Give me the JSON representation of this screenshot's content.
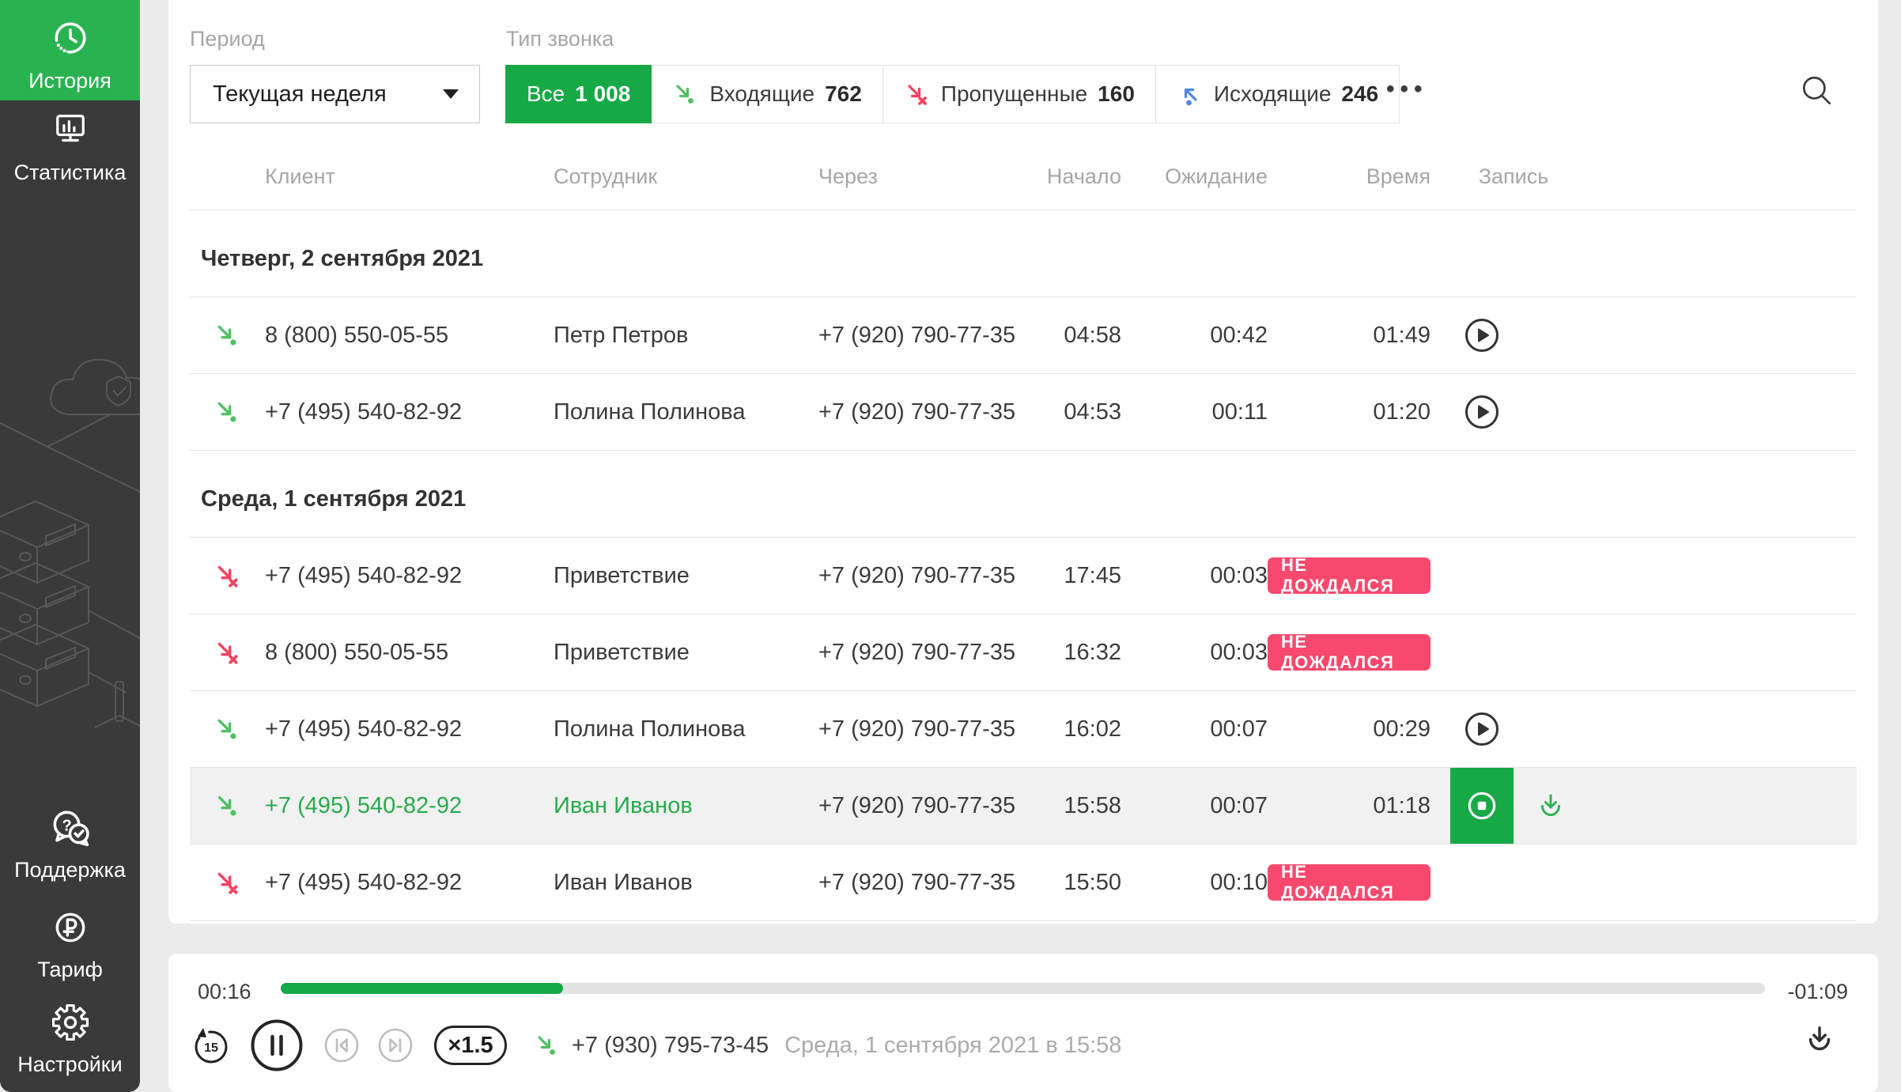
{
  "colors": {
    "accent_green": "#16a945",
    "sidebar_green": "#29b350",
    "icon_green": "#4fc161",
    "red": "#f8405f",
    "badge_red": "#f9486d",
    "blue": "#4f86ec",
    "sidebar_bg": "#3a3a3a",
    "page_bg": "#ebebeb",
    "row_highlight": "#f1f1f1",
    "text_dark": "#3f3f3f",
    "text_gray": "#a6a6a6"
  },
  "sidebar": {
    "items": [
      {
        "id": "history",
        "label": "История",
        "active": true
      },
      {
        "id": "statistics",
        "label": "Статистика",
        "active": false
      },
      {
        "id": "support",
        "label": "Поддержка",
        "active": false
      },
      {
        "id": "tariff",
        "label": "Тариф",
        "active": false
      },
      {
        "id": "settings",
        "label": "Настройки",
        "active": false
      }
    ]
  },
  "filters": {
    "period_label": "Период",
    "period_value": "Текущая неделя",
    "type_label": "Тип звонка",
    "types": [
      {
        "label": "Все",
        "count": "1 008",
        "active": true
      },
      {
        "label": "Входящие",
        "count": "762",
        "icon": "incoming"
      },
      {
        "label": "Пропущенные",
        "count": "160",
        "icon": "missed"
      },
      {
        "label": "Исходящие",
        "count": "246",
        "icon": "outgoing"
      }
    ],
    "more_label": "•••"
  },
  "table": {
    "headers": [
      "Клиент",
      "Сотрудник",
      "Через",
      "Начало",
      "Ожидание",
      "Время",
      "Запись"
    ],
    "badge_label": "НЕ ДОЖДАЛСЯ",
    "groups": [
      {
        "date": "Четверг, 2 сентября 2021",
        "rows": [
          {
            "type": "incoming",
            "client": "8 (800) 550-05-55",
            "employee": "Петр Петров",
            "via": "+7 (920) 790-77-35",
            "start": "04:58",
            "wait": "00:42",
            "time": "01:49",
            "badge": false,
            "record": "play",
            "download": false,
            "active": false
          },
          {
            "type": "incoming",
            "client": "+7 (495) 540-82-92",
            "employee": "Полина Полинова",
            "via": "+7 (920) 790-77-35",
            "start": "04:53",
            "wait": "00:11",
            "time": "01:20",
            "badge": false,
            "record": "play",
            "download": false,
            "active": false
          }
        ]
      },
      {
        "date": "Среда, 1 сентября 2021",
        "rows": [
          {
            "type": "missed",
            "client": "+7 (495) 540-82-92",
            "employee": "Приветствие",
            "via": "+7 (920) 790-77-35",
            "start": "17:45",
            "wait": "00:03",
            "time": "",
            "badge": true,
            "record": "none",
            "download": false,
            "active": false
          },
          {
            "type": "missed",
            "client": "8 (800) 550-05-55",
            "employee": "Приветствие",
            "via": "+7 (920) 790-77-35",
            "start": "16:32",
            "wait": "00:03",
            "time": "",
            "badge": true,
            "record": "none",
            "download": false,
            "active": false
          },
          {
            "type": "incoming",
            "client": "+7 (495) 540-82-92",
            "employee": "Полина Полинова",
            "via": "+7 (920) 790-77-35",
            "start": "16:02",
            "wait": "00:07",
            "time": "00:29",
            "badge": false,
            "record": "play",
            "download": false,
            "active": false
          },
          {
            "type": "incoming",
            "client": "+7 (495) 540-82-92",
            "employee": "Иван Иванов",
            "via": "+7 (920) 790-77-35",
            "start": "15:58",
            "wait": "00:07",
            "time": "01:18",
            "badge": false,
            "record": "stop",
            "download": true,
            "active": true
          },
          {
            "type": "missed",
            "client": "+7 (495) 540-82-92",
            "employee": "Иван Иванов",
            "via": "+7 (920) 790-77-35",
            "start": "15:50",
            "wait": "00:10",
            "time": "",
            "badge": true,
            "record": "none",
            "download": false,
            "active": false
          }
        ]
      }
    ]
  },
  "player": {
    "elapsed": "00:16",
    "remaining": "-01:09",
    "progress_percent": 19,
    "speed": "×1.5",
    "phone": "+7 (930) 795-73-45",
    "datetime": "Среда, 1 сентября 2021 в 15:58"
  }
}
